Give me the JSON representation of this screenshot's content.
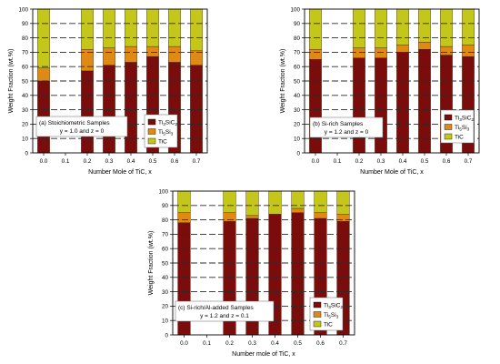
{
  "colors": {
    "ti3sic2": "#7b0c0c",
    "ti5si3": "#de8a14",
    "tic": "#c4c71a",
    "marker": "#e8102a",
    "grid": "#2b2b2b",
    "frame": "#000000"
  },
  "legend_labels": {
    "ti3sic2": [
      "Ti",
      "3",
      "SiC",
      "2"
    ],
    "ti5si3": [
      "Ti",
      "5",
      "Si",
      "3"
    ],
    "tic": [
      "TiC"
    ]
  },
  "chart_data": [
    {
      "type": "bar",
      "stacked": true,
      "panel": "a",
      "annotation": [
        "(a) Stoichiometric Samples",
        "y = 1.0 and z = 0"
      ],
      "xlabel": "Number Mole of TiC, x",
      "ylabel": "Weight Fraction (wt.%)",
      "ylim": [
        0,
        100
      ],
      "yticks": [
        0,
        10,
        20,
        30,
        40,
        50,
        60,
        70,
        80,
        90,
        100
      ],
      "categories": [
        "0.0",
        "0.1",
        "0.2",
        "0.3",
        "0.4",
        "0.5",
        "0.6",
        "0.7"
      ],
      "grid": true,
      "legend": "right",
      "series": [
        {
          "key": "ti3sic2",
          "values": [
            50,
            null,
            57,
            61,
            63,
            67,
            63,
            61
          ]
        },
        {
          "key": "ti5si3",
          "values": [
            9,
            null,
            15,
            12,
            11,
            7,
            11,
            10
          ]
        },
        {
          "key": "tic",
          "values": [
            41,
            null,
            28,
            27,
            26,
            26,
            26,
            29
          ]
        }
      ]
    },
    {
      "type": "bar",
      "stacked": true,
      "panel": "b",
      "annotation": [
        "(b) Si-rich Samples",
        "y = 1.2 and z = 0"
      ],
      "xlabel": "Number Mole of TiC, x",
      "ylabel": "Weight Fraction (wt.%)",
      "ylim": [
        0,
        100
      ],
      "yticks": [
        0,
        10,
        20,
        30,
        40,
        50,
        60,
        70,
        80,
        90,
        100
      ],
      "categories": [
        "0.0",
        "0.1",
        "0.2",
        "0.3",
        "0.4",
        "0.5",
        "0.6",
        "0.7"
      ],
      "grid": true,
      "legend": "right",
      "series": [
        {
          "key": "ti3sic2",
          "values": [
            65,
            null,
            66,
            66,
            70,
            72,
            68,
            67
          ]
        },
        {
          "key": "ti5si3",
          "values": [
            7,
            null,
            7,
            7,
            5,
            5,
            6,
            8
          ]
        },
        {
          "key": "tic",
          "values": [
            28,
            null,
            27,
            27,
            25,
            23,
            26,
            25
          ]
        }
      ]
    },
    {
      "type": "bar",
      "stacked": true,
      "panel": "c",
      "annotation": [
        "(c) Si-rich/Al-added Samples",
        "y = 1.2 and z = 0.1"
      ],
      "xlabel": "Number mole of TiC, x",
      "ylabel": "Weight Fraction (wt.%)",
      "ylim": [
        0,
        100
      ],
      "yticks": [
        0,
        10,
        20,
        30,
        40,
        50,
        60,
        70,
        80,
        90,
        100
      ],
      "categories": [
        "0.0",
        "0.1",
        "0.2",
        "0.3",
        "0.4",
        "0.5",
        "0.6",
        "0.7"
      ],
      "grid": true,
      "legend": "bottom-right",
      "series": [
        {
          "key": "ti3sic2",
          "values": [
            78,
            null,
            79,
            81,
            84,
            85,
            81,
            79
          ]
        },
        {
          "key": "ti5si3",
          "values": [
            7,
            null,
            6,
            2,
            0,
            3,
            4,
            5
          ]
        },
        {
          "key": "tic",
          "values": [
            15,
            null,
            15,
            17,
            16,
            12,
            15,
            16
          ]
        }
      ]
    }
  ]
}
